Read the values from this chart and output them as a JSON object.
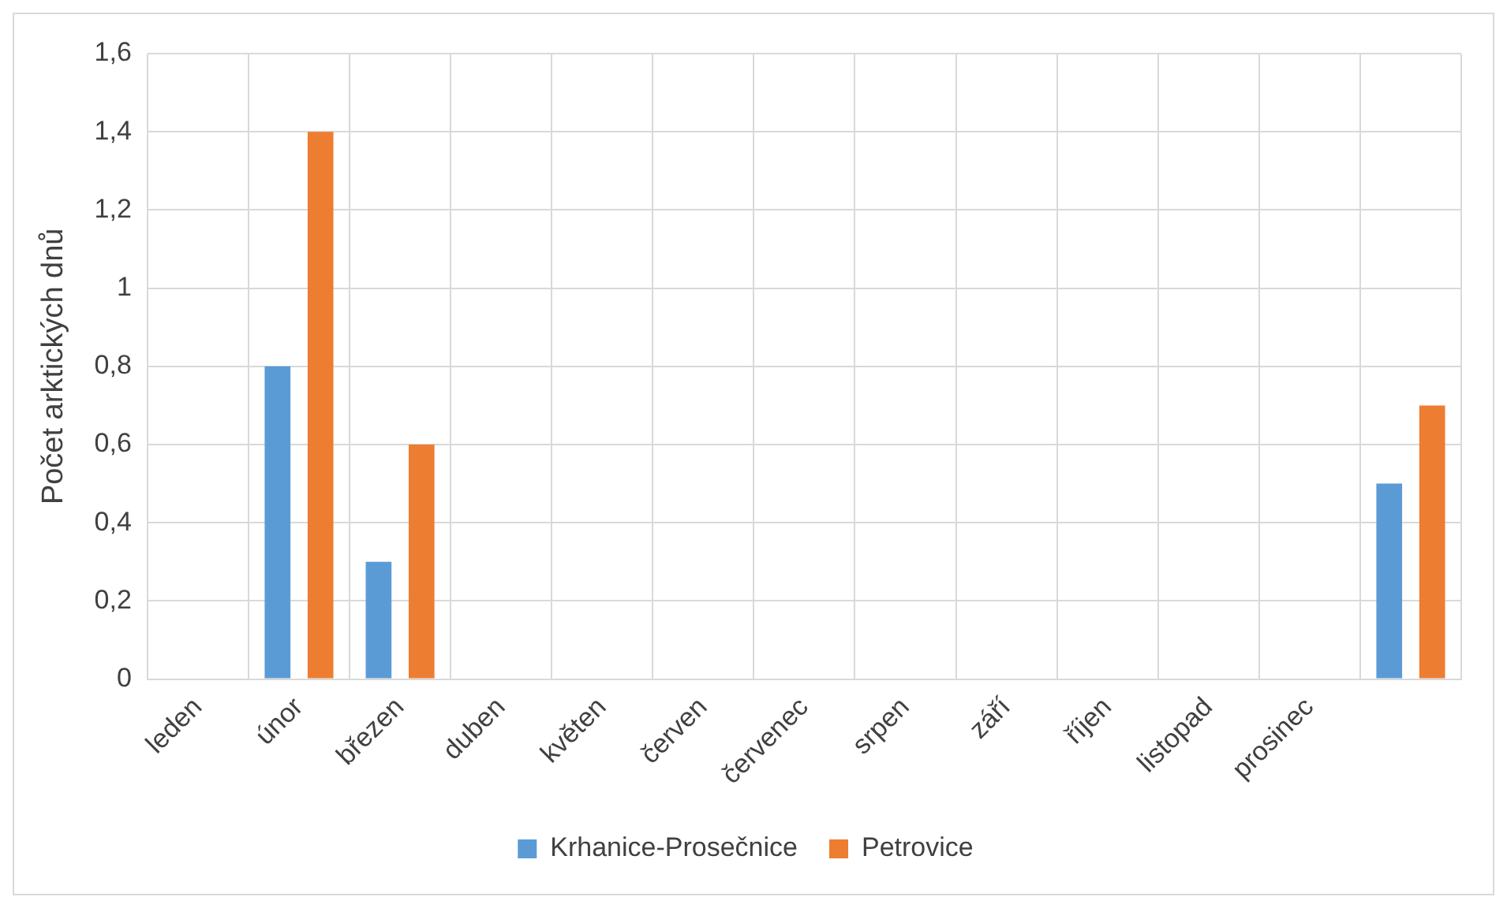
{
  "chart_data": {
    "type": "bar",
    "ylabel": "Počet arktických dnů",
    "categories": [
      "leden",
      "únor",
      "březen",
      "duben",
      "květen",
      "červen",
      "červenec",
      "srpen",
      "září",
      "říjen",
      "listopad",
      "prosinec",
      null
    ],
    "series": [
      {
        "name": "Krhanice-Prosečnice",
        "color": "#5b9bd5",
        "values": [
          0,
          0.8,
          0.3,
          0,
          0,
          0,
          0,
          0,
          0,
          0,
          0,
          0,
          0.5
        ]
      },
      {
        "name": "Petrovice",
        "color": "#ed7d31",
        "values": [
          0,
          1.4,
          0.6,
          0,
          0,
          0,
          0,
          0,
          0,
          0,
          0,
          0,
          0.7
        ]
      }
    ],
    "ylim": [
      0,
      1.6
    ],
    "yticks": [
      0,
      {
        "value": 0.2,
        "label": "0,2"
      },
      {
        "value": 0.4,
        "label": "0,4"
      },
      {
        "value": 0.6,
        "label": "0,6"
      },
      {
        "value": 0.8,
        "label": "0,8"
      },
      1,
      {
        "value": 1.2,
        "label": "1,2"
      },
      {
        "value": 1.4,
        "label": "1,4"
      },
      {
        "value": 1.6,
        "label": "1,6"
      }
    ],
    "grid": true,
    "legend": "bottom"
  }
}
